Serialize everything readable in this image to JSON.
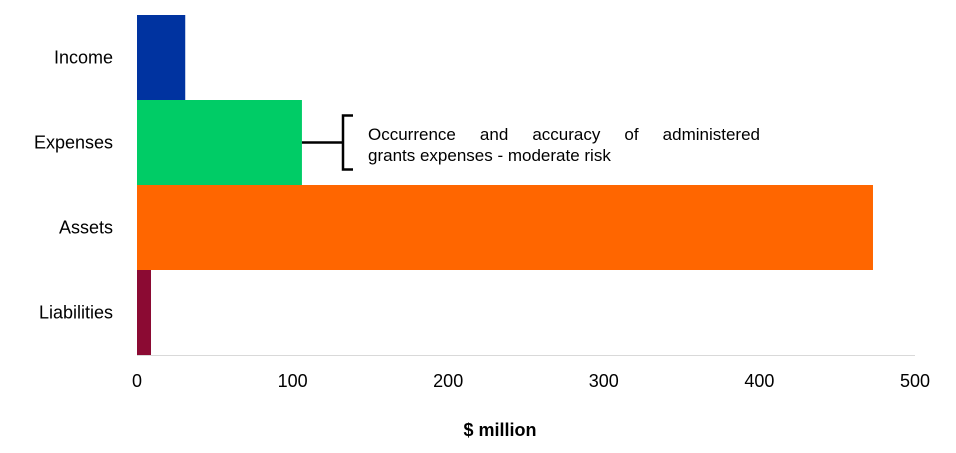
{
  "chart_data": {
    "type": "bar",
    "orientation": "horizontal",
    "categories": [
      "Income",
      "Expenses",
      "Assets",
      "Liabilities"
    ],
    "values": [
      31,
      106,
      473,
      9
    ],
    "colors": [
      "#0033a0",
      "#00cc66",
      "#ff6600",
      "#8b0a33"
    ],
    "xlabel": "$ million",
    "xlim": [
      0,
      500
    ],
    "xticks": [
      0,
      100,
      200,
      300,
      400,
      500
    ],
    "grid": false,
    "legend": "none",
    "annotation": {
      "target": "Expenses",
      "line1": "Occurrence and accuracy of administered",
      "line2": "grants expenses - moderate risk"
    }
  }
}
